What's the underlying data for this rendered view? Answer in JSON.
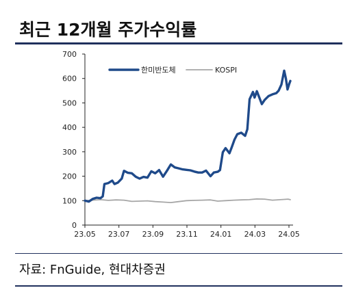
{
  "title": "최근 12개월 주가수익률",
  "source": "자료: FnGuide, 현대차증권",
  "colors": {
    "hanmi": "#1f4a8a",
    "kospi": "#a6a6a6",
    "axis": "#222222",
    "frame": "#1f2f5c"
  },
  "chart_data": {
    "type": "line",
    "title": "",
    "xlabel": "",
    "ylabel": "",
    "ylim": [
      0,
      700
    ],
    "yticks": [
      0,
      100,
      200,
      300,
      400,
      500,
      600,
      700
    ],
    "x_tick_labels": [
      "23.05",
      "23.07",
      "23.09",
      "23.11",
      "24.01",
      "24.03",
      "24.05"
    ],
    "x_range": [
      "2023-05-22",
      "2024-05-24"
    ],
    "grid": false,
    "legend": "top",
    "series": [
      {
        "name": "한미반도체",
        "color": "#1f4a8a",
        "points": [
          [
            "2023-05-22",
            100
          ],
          [
            "2023-05-29",
            96
          ],
          [
            "2023-06-05",
            107
          ],
          [
            "2023-06-12",
            112
          ],
          [
            "2023-06-19",
            110
          ],
          [
            "2023-06-23",
            118
          ],
          [
            "2023-06-26",
            168
          ],
          [
            "2023-07-03",
            172
          ],
          [
            "2023-07-10",
            182
          ],
          [
            "2023-07-14",
            168
          ],
          [
            "2023-07-20",
            174
          ],
          [
            "2023-07-27",
            190
          ],
          [
            "2023-07-31",
            222
          ],
          [
            "2023-08-07",
            214
          ],
          [
            "2023-08-14",
            212
          ],
          [
            "2023-08-21",
            198
          ],
          [
            "2023-08-28",
            190
          ],
          [
            "2023-09-04",
            197
          ],
          [
            "2023-09-11",
            194
          ],
          [
            "2023-09-18",
            220
          ],
          [
            "2023-09-25",
            212
          ],
          [
            "2023-10-02",
            225
          ],
          [
            "2023-10-09",
            198
          ],
          [
            "2023-10-16",
            222
          ],
          [
            "2023-10-23",
            248
          ],
          [
            "2023-10-30",
            236
          ],
          [
            "2023-11-06",
            232
          ],
          [
            "2023-11-13",
            228
          ],
          [
            "2023-11-20",
            226
          ],
          [
            "2023-11-27",
            224
          ],
          [
            "2023-12-04",
            219
          ],
          [
            "2023-12-11",
            215
          ],
          [
            "2023-12-18",
            215
          ],
          [
            "2023-12-25",
            223
          ],
          [
            "2024-01-02",
            200
          ],
          [
            "2024-01-08",
            215
          ],
          [
            "2024-01-15",
            218
          ],
          [
            "2024-01-19",
            225
          ],
          [
            "2024-01-24",
            298
          ],
          [
            "2024-01-29",
            315
          ],
          [
            "2024-02-05",
            294
          ],
          [
            "2024-02-09",
            318
          ],
          [
            "2024-02-14",
            350
          ],
          [
            "2024-02-19",
            372
          ],
          [
            "2024-02-26",
            378
          ],
          [
            "2024-03-04",
            365
          ],
          [
            "2024-03-08",
            392
          ],
          [
            "2024-03-12",
            515
          ],
          [
            "2024-03-18",
            545
          ],
          [
            "2024-03-21",
            522
          ],
          [
            "2024-03-25",
            548
          ],
          [
            "2024-03-29",
            525
          ],
          [
            "2024-04-03",
            495
          ],
          [
            "2024-04-08",
            512
          ],
          [
            "2024-04-15",
            528
          ],
          [
            "2024-04-22",
            535
          ],
          [
            "2024-04-29",
            540
          ],
          [
            "2024-05-03",
            550
          ],
          [
            "2024-05-08",
            575
          ],
          [
            "2024-05-13",
            632
          ],
          [
            "2024-05-16",
            600
          ],
          [
            "2024-05-19",
            555
          ],
          [
            "2024-05-22",
            578
          ],
          [
            "2024-05-24",
            590
          ]
        ]
      },
      {
        "name": "KOSPI",
        "color": "#a6a6a6",
        "points": [
          [
            "2023-05-22",
            100
          ],
          [
            "2023-06-05",
            102
          ],
          [
            "2023-06-19",
            104
          ],
          [
            "2023-07-03",
            101
          ],
          [
            "2023-07-17",
            103
          ],
          [
            "2023-07-31",
            102
          ],
          [
            "2023-08-14",
            97
          ],
          [
            "2023-08-28",
            98
          ],
          [
            "2023-09-11",
            99
          ],
          [
            "2023-09-25",
            96
          ],
          [
            "2023-10-09",
            94
          ],
          [
            "2023-10-23",
            92
          ],
          [
            "2023-11-06",
            96
          ],
          [
            "2023-11-20",
            100
          ],
          [
            "2023-12-04",
            101
          ],
          [
            "2023-12-18",
            102
          ],
          [
            "2024-01-02",
            103
          ],
          [
            "2024-01-15",
            98
          ],
          [
            "2024-01-29",
            100
          ],
          [
            "2024-02-13",
            102
          ],
          [
            "2024-02-26",
            103
          ],
          [
            "2024-03-11",
            104
          ],
          [
            "2024-03-25",
            107
          ],
          [
            "2024-04-08",
            106
          ],
          [
            "2024-04-22",
            102
          ],
          [
            "2024-05-06",
            104
          ],
          [
            "2024-05-20",
            106
          ],
          [
            "2024-05-24",
            104
          ]
        ]
      }
    ]
  }
}
